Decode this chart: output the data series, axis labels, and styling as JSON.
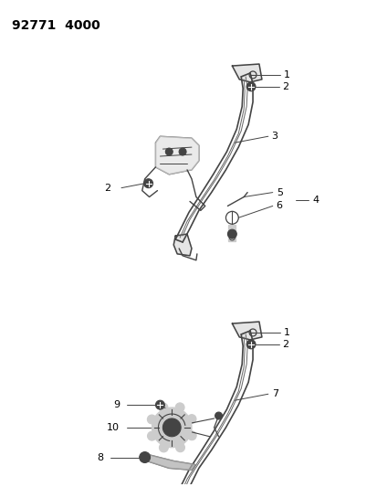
{
  "title": "92771  4000",
  "bg": "#ffffff",
  "lc": "#444444",
  "tc": "#000000",
  "fig_w": 4.14,
  "fig_h": 5.33,
  "dpi": 100
}
